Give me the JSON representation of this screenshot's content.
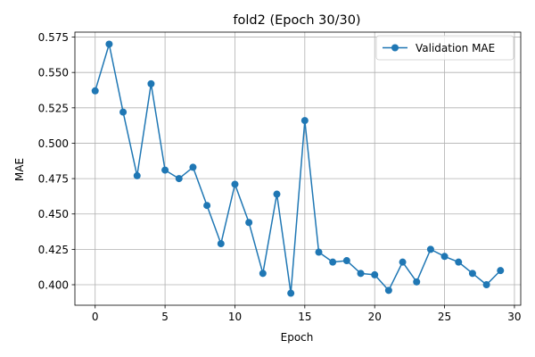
{
  "chart_data": {
    "type": "line",
    "title": "fold2 (Epoch 30/30)",
    "xlabel": "Epoch",
    "ylabel": "MAE",
    "xlim": [
      -1.45,
      30.45
    ],
    "ylim": [
      0.3855,
      0.5785
    ],
    "xticks": [
      0,
      5,
      10,
      15,
      20,
      25,
      30
    ],
    "yticks": [
      0.4,
      0.425,
      0.45,
      0.475,
      0.5,
      0.525,
      0.55,
      0.575
    ],
    "grid": true,
    "legend_position": "top-right",
    "series": [
      {
        "name": "Validation MAE",
        "color": "#1f77b4",
        "marker": "circle",
        "x": [
          0,
          1,
          2,
          3,
          4,
          5,
          6,
          7,
          8,
          9,
          10,
          11,
          12,
          13,
          14,
          15,
          16,
          17,
          18,
          19,
          20,
          21,
          22,
          23,
          24,
          25,
          26,
          27,
          28,
          29
        ],
        "y": [
          0.537,
          0.57,
          0.522,
          0.477,
          0.542,
          0.481,
          0.475,
          0.483,
          0.456,
          0.429,
          0.471,
          0.444,
          0.408,
          0.464,
          0.394,
          0.516,
          0.423,
          0.416,
          0.417,
          0.408,
          0.407,
          0.396,
          0.416,
          0.402,
          0.425,
          0.42,
          0.416,
          0.408,
          0.4,
          0.41
        ]
      }
    ]
  }
}
